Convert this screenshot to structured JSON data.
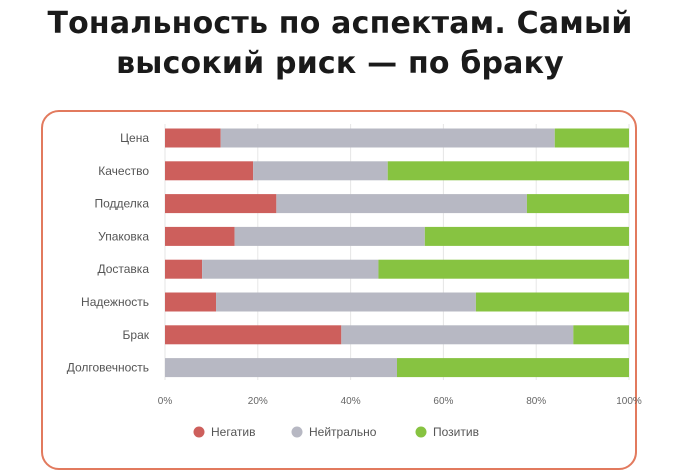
{
  "page": {
    "title_line1": "Тональность по аспектам. Самый",
    "title_line2": "высокий риск — по браку"
  },
  "colors": {
    "card_border": "#e27a5e",
    "negative": "#cd5f5c",
    "neutral": "#b7b8c3",
    "positive": "#87c341",
    "grid": "#e6e6e6"
  },
  "chart_data": {
    "type": "bar",
    "orientation": "horizontal",
    "stacked": true,
    "percent_stacked": true,
    "categories": [
      "Цена",
      "Качество",
      "Подделка",
      "Упаковка",
      "Доставка",
      "Надежность",
      "Брак",
      "Долговечность"
    ],
    "series": [
      {
        "name": "Негатив",
        "color": "#cd5f5c",
        "values": [
          12,
          19,
          24,
          15,
          8,
          11,
          38,
          0
        ]
      },
      {
        "name": "Нейтрально",
        "color": "#b7b8c3",
        "values": [
          72,
          29,
          54,
          41,
          38,
          56,
          50,
          50
        ]
      },
      {
        "name": "Позитив",
        "color": "#87c341",
        "values": [
          16,
          52,
          22,
          44,
          54,
          33,
          12,
          50
        ]
      }
    ],
    "xlim": [
      0,
      100
    ],
    "x_ticks": [
      "0%",
      "20%",
      "40%",
      "60%",
      "80%",
      "100%"
    ],
    "grid": true,
    "legend_position": "bottom"
  }
}
